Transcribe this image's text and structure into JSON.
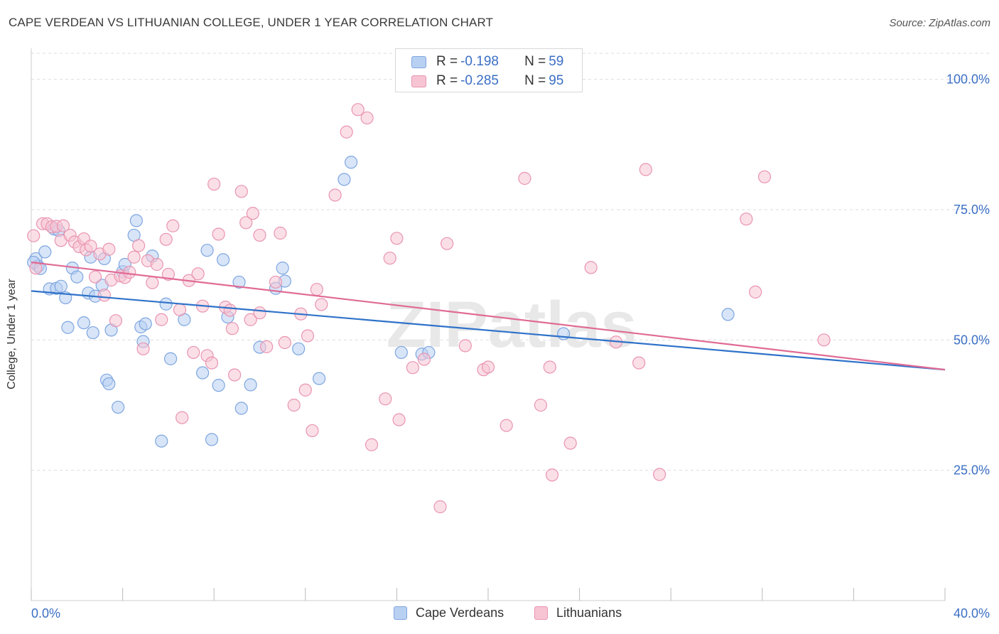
{
  "title": "CAPE VERDEAN VS LITHUANIAN COLLEGE, UNDER 1 YEAR CORRELATION CHART",
  "source": "Source: ZipAtlas.com",
  "watermark": "ZIPatlas",
  "legend_top": [
    {
      "r_label": "R = ",
      "r_value": "-0.198",
      "n_label": "N = ",
      "n_value": "59"
    },
    {
      "r_label": "R = ",
      "r_value": "-0.285",
      "n_label": "N = ",
      "n_value": "95"
    }
  ],
  "legend_bottom": [
    "Cape Verdeans",
    "Lithuanians"
  ],
  "colors": {
    "blue_fill": "#b8d0f2",
    "blue_stroke": "#7ea6e0",
    "blue_line": "#2f72c9",
    "pink_fill": "#f7c4d3",
    "pink_stroke": "#e994b1",
    "pink_line": "#e06b95",
    "axis_text": "#3b6fc4",
    "grid": "#dddddd"
  },
  "chart_data": {
    "type": "scatter",
    "title": "CAPE VERDEAN VS LITHUANIAN COLLEGE, UNDER 1 YEAR CORRELATION CHART",
    "xlabel": "",
    "ylabel": "College, Under 1 year",
    "xlim": [
      0,
      40
    ],
    "ylim": [
      0,
      105
    ],
    "x_tick_labels": [
      "0.0%",
      "40.0%"
    ],
    "y_ticks": [
      25,
      50,
      75,
      100
    ],
    "y_tick_labels": [
      "25.0%",
      "50.0%",
      "75.0%",
      "100.0%"
    ],
    "grid": "horizontal dashed",
    "series": [
      {
        "name": "Cape Verdeans",
        "r": -0.198,
        "n": 59,
        "trend": {
          "x": [
            0,
            40
          ],
          "y": [
            59.4,
            44.3
          ]
        },
        "points": [
          [
            0.2,
            65.6
          ],
          [
            0.3,
            64.2
          ],
          [
            0.6,
            66.9
          ],
          [
            0.8,
            59.8
          ],
          [
            1.0,
            71.3
          ],
          [
            1.1,
            59.9
          ],
          [
            1.3,
            60.3
          ],
          [
            1.5,
            58.1
          ],
          [
            1.6,
            52.4
          ],
          [
            1.8,
            63.8
          ],
          [
            2.0,
            62.1
          ],
          [
            2.3,
            53.3
          ],
          [
            2.5,
            59.0
          ],
          [
            2.6,
            65.9
          ],
          [
            2.7,
            51.4
          ],
          [
            2.8,
            58.4
          ],
          [
            3.1,
            60.5
          ],
          [
            3.2,
            65.6
          ],
          [
            3.3,
            42.3
          ],
          [
            3.4,
            41.6
          ],
          [
            3.5,
            51.9
          ],
          [
            3.8,
            37.1
          ],
          [
            4.0,
            63.1
          ],
          [
            4.1,
            64.5
          ],
          [
            4.5,
            70.1
          ],
          [
            4.6,
            72.9
          ],
          [
            4.8,
            52.5
          ],
          [
            4.9,
            49.7
          ],
          [
            5.0,
            53.1
          ],
          [
            5.3,
            66.1
          ],
          [
            5.7,
            30.6
          ],
          [
            5.9,
            56.9
          ],
          [
            6.1,
            46.4
          ],
          [
            6.7,
            53.9
          ],
          [
            7.5,
            43.7
          ],
          [
            7.7,
            67.2
          ],
          [
            7.9,
            30.9
          ],
          [
            8.2,
            41.3
          ],
          [
            8.4,
            65.4
          ],
          [
            8.6,
            54.4
          ],
          [
            9.1,
            61.1
          ],
          [
            9.2,
            36.9
          ],
          [
            9.6,
            41.4
          ],
          [
            10.0,
            48.6
          ],
          [
            10.7,
            59.9
          ],
          [
            11.0,
            63.8
          ],
          [
            11.1,
            61.3
          ],
          [
            11.7,
            48.3
          ],
          [
            12.6,
            42.6
          ],
          [
            13.7,
            80.8
          ],
          [
            14.0,
            84.1
          ],
          [
            16.2,
            47.6
          ],
          [
            17.1,
            47.3
          ],
          [
            17.4,
            47.6
          ],
          [
            23.3,
            51.2
          ],
          [
            30.5,
            54.9
          ],
          [
            0.1,
            64.9
          ],
          [
            0.4,
            63.7
          ],
          [
            1.2,
            71.0
          ]
        ]
      },
      {
        "name": "Lithuanians",
        "r": -0.285,
        "n": 95,
        "trend": {
          "x": [
            0,
            40
          ],
          "y": [
            64.9,
            44.3
          ]
        },
        "points": [
          [
            0.1,
            70.0
          ],
          [
            0.2,
            63.8
          ],
          [
            0.5,
            72.3
          ],
          [
            0.7,
            72.3
          ],
          [
            0.9,
            71.7
          ],
          [
            1.1,
            71.8
          ],
          [
            1.3,
            69.1
          ],
          [
            1.4,
            71.9
          ],
          [
            1.7,
            70.1
          ],
          [
            1.9,
            68.8
          ],
          [
            2.1,
            67.9
          ],
          [
            2.3,
            69.4
          ],
          [
            2.4,
            67.3
          ],
          [
            2.6,
            68.0
          ],
          [
            2.8,
            62.1
          ],
          [
            3.0,
            66.5
          ],
          [
            3.2,
            58.6
          ],
          [
            3.4,
            67.4
          ],
          [
            3.5,
            61.5
          ],
          [
            3.7,
            53.7
          ],
          [
            3.9,
            62.3
          ],
          [
            4.1,
            62.0
          ],
          [
            4.3,
            63.0
          ],
          [
            4.5,
            65.9
          ],
          [
            4.7,
            68.1
          ],
          [
            4.9,
            48.3
          ],
          [
            5.1,
            65.2
          ],
          [
            5.3,
            61.0
          ],
          [
            5.5,
            64.5
          ],
          [
            5.7,
            53.9
          ],
          [
            5.9,
            69.3
          ],
          [
            6.0,
            62.6
          ],
          [
            6.2,
            71.9
          ],
          [
            6.5,
            55.8
          ],
          [
            6.6,
            35.1
          ],
          [
            6.9,
            61.4
          ],
          [
            7.1,
            47.6
          ],
          [
            7.3,
            62.7
          ],
          [
            7.5,
            56.5
          ],
          [
            7.7,
            47.0
          ],
          [
            7.9,
            45.6
          ],
          [
            8.0,
            79.9
          ],
          [
            8.2,
            70.3
          ],
          [
            8.5,
            56.3
          ],
          [
            8.7,
            55.7
          ],
          [
            8.8,
            52.2
          ],
          [
            8.9,
            43.3
          ],
          [
            9.2,
            78.5
          ],
          [
            9.4,
            72.5
          ],
          [
            9.6,
            53.9
          ],
          [
            9.7,
            74.3
          ],
          [
            10.0,
            55.2
          ],
          [
            10.0,
            70.1
          ],
          [
            10.3,
            48.7
          ],
          [
            10.7,
            61.1
          ],
          [
            10.9,
            70.5
          ],
          [
            11.1,
            49.5
          ],
          [
            11.5,
            37.5
          ],
          [
            11.8,
            55.0
          ],
          [
            12.0,
            40.4
          ],
          [
            12.1,
            50.8
          ],
          [
            12.3,
            32.6
          ],
          [
            12.5,
            59.7
          ],
          [
            12.7,
            56.8
          ],
          [
            13.3,
            77.8
          ],
          [
            13.8,
            89.9
          ],
          [
            14.3,
            94.2
          ],
          [
            14.7,
            92.6
          ],
          [
            14.9,
            29.9
          ],
          [
            15.5,
            38.7
          ],
          [
            15.7,
            65.7
          ],
          [
            16.0,
            69.5
          ],
          [
            16.1,
            34.7
          ],
          [
            16.7,
            44.7
          ],
          [
            17.2,
            46.3
          ],
          [
            17.9,
            18.0
          ],
          [
            18.2,
            68.5
          ],
          [
            19.0,
            48.9
          ],
          [
            19.8,
            44.3
          ],
          [
            20.0,
            44.8
          ],
          [
            20.8,
            33.6
          ],
          [
            21.6,
            81.0
          ],
          [
            22.3,
            37.5
          ],
          [
            22.7,
            44.8
          ],
          [
            22.8,
            24.1
          ],
          [
            23.6,
            30.2
          ],
          [
            24.5,
            63.9
          ],
          [
            25.6,
            49.6
          ],
          [
            26.6,
            45.6
          ],
          [
            26.9,
            82.7
          ],
          [
            27.5,
            24.2
          ],
          [
            31.3,
            73.2
          ],
          [
            31.7,
            59.2
          ],
          [
            32.1,
            81.3
          ],
          [
            34.7,
            50.0
          ]
        ]
      }
    ]
  }
}
